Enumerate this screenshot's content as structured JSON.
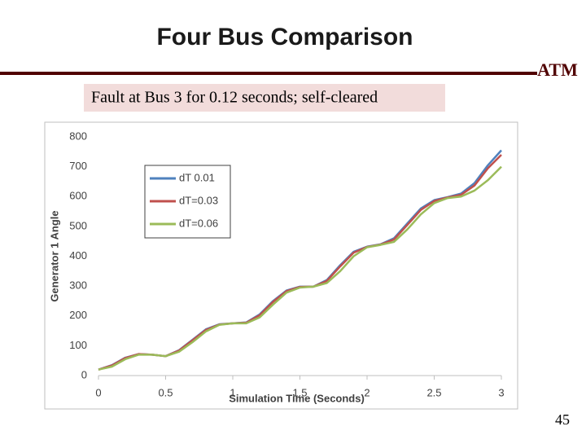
{
  "slide": {
    "title": "Four Bus Comparison",
    "subtitle": "Fault at Bus 3 for 0.12 seconds; self-cleared",
    "logo": "ATM",
    "page_number": "45"
  },
  "chart_data": {
    "type": "line",
    "x_label": "Simulation Time (Seconds)",
    "y_label": "Generator 1 Angle",
    "x": [
      0,
      0.1,
      0.2,
      0.3,
      0.4,
      0.5,
      0.6,
      0.7,
      0.8,
      0.9,
      1,
      1.1,
      1.2,
      1.3,
      1.4,
      1.5,
      1.6,
      1.7,
      1.8,
      1.9,
      2,
      2.1,
      2.2,
      2.3,
      2.4,
      2.5,
      2.6,
      2.7,
      2.8,
      2.9,
      3
    ],
    "series": [
      {
        "name": "dT  0.01",
        "color": "#4f81bd",
        "values": [
          20,
          35,
          60,
          72,
          70,
          65,
          85,
          120,
          155,
          172,
          175,
          178,
          205,
          250,
          285,
          298,
          298,
          320,
          370,
          415,
          432,
          440,
          460,
          510,
          560,
          588,
          598,
          610,
          645,
          705,
          755
        ]
      },
      {
        "name": "dT=0.03",
        "color": "#c0504d",
        "values": [
          20,
          34,
          59,
          72,
          70,
          65,
          84,
          118,
          153,
          171,
          175,
          177,
          202,
          247,
          283,
          297,
          298,
          317,
          366,
          412,
          431,
          439,
          456,
          505,
          555,
          585,
          597,
          606,
          637,
          695,
          740
        ]
      },
      {
        "name": "dT=0.06",
        "color": "#9bbb59",
        "values": [
          20,
          30,
          55,
          70,
          70,
          65,
          80,
          112,
          148,
          170,
          175,
          175,
          195,
          238,
          278,
          295,
          298,
          310,
          350,
          400,
          430,
          438,
          448,
          490,
          540,
          578,
          595,
          600,
          620,
          655,
          700
        ]
      }
    ],
    "xlim": [
      0,
      3
    ],
    "xticks": [
      0,
      0.5,
      1,
      1.5,
      2,
      2.5,
      3
    ],
    "ylim": [
      0,
      800
    ],
    "yticks": [
      0,
      100,
      200,
      300,
      400,
      500,
      600,
      700,
      800
    ],
    "grid": false,
    "legend": "upper-left"
  }
}
